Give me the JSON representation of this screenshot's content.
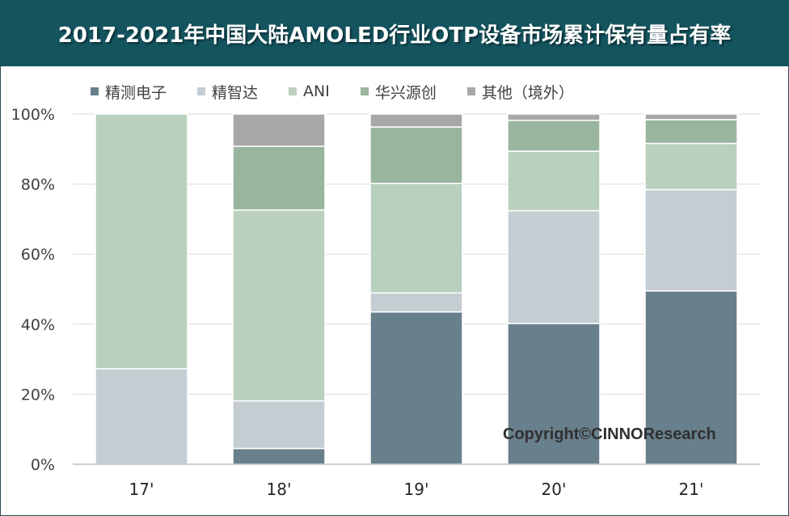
{
  "title": "2017-2021年中国大陆AMOLED行业OTP设备市场累计保有量占有率",
  "copyright": "Copyright©CINNOResearch",
  "colors": {
    "title_bg": "#14545f",
    "grid": "#d9d9d9",
    "axis": "#bfbfbf"
  },
  "chart_data": {
    "type": "bar",
    "stacked": true,
    "title": "2017-2021年中国大陆AMOLED行业OTP设备市场累计保有量占有率",
    "categories": [
      "17'",
      "18'",
      "19'",
      "20'",
      "21'"
    ],
    "ylim": [
      0,
      100
    ],
    "yticks": [
      "0%",
      "20%",
      "40%",
      "60%",
      "80%",
      "100%"
    ],
    "grid": true,
    "legend": "top",
    "series": [
      {
        "name": "精测电子",
        "color": "#687f8c",
        "values": [
          0,
          4.5,
          43.5,
          40.2,
          49.5
        ]
      },
      {
        "name": "精智达",
        "color": "#c3cdd2",
        "values": [
          27.3,
          13.6,
          5.4,
          32.2,
          28.9
        ]
      },
      {
        "name": "ANI",
        "color": "#bad0be",
        "values": [
          72.7,
          54.5,
          31.3,
          17.0,
          13.2
        ]
      },
      {
        "name": "华兴源创",
        "color": "#9ab59e",
        "values": [
          0,
          18.2,
          16.1,
          8.8,
          6.8
        ]
      },
      {
        "name": "其他（境外）",
        "color": "#a8a7a9",
        "values": [
          0,
          9.2,
          3.7,
          1.8,
          1.6
        ]
      }
    ]
  }
}
